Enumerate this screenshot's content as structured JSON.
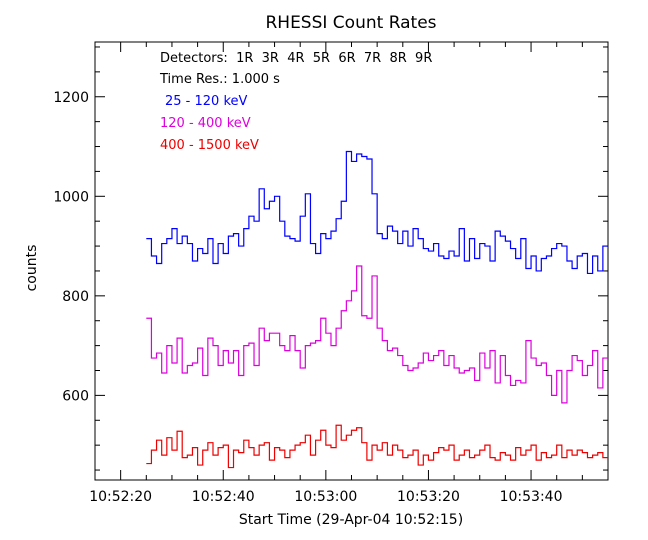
{
  "chart_data": {
    "type": "line",
    "title": "RHESSI Count Rates",
    "xlabel": "Start Time (29-Apr-04 10:52:15)",
    "ylabel": "counts",
    "x_unit": "seconds after 10:52:15",
    "xlim": [
      0,
      100
    ],
    "ylim": [
      430,
      1310
    ],
    "x_ticks": [
      {
        "value": 5,
        "label": "10:52:20"
      },
      {
        "value": 25,
        "label": "10:52:40"
      },
      {
        "value": 45,
        "label": "10:53:00"
      },
      {
        "value": 65,
        "label": "10:53:20"
      },
      {
        "value": 85,
        "label": "10:53:40"
      }
    ],
    "y_ticks": [
      {
        "value": 600,
        "label": "600"
      },
      {
        "value": 800,
        "label": "800"
      },
      {
        "value": 1000,
        "label": "1000"
      },
      {
        "value": 1200,
        "label": "1200"
      }
    ],
    "annotations": {
      "detectors": "Detectors:  1R  3R  4R  5R  6R  7R  8R  9R",
      "time_res": "Time Res.: 1.000 s"
    },
    "grid": false,
    "legend_position": "top-left",
    "step_start": 10,
    "step_width": 1,
    "series": [
      {
        "name": "25 - 120 keV",
        "color": "#0000ff",
        "values": [
          915,
          880,
          865,
          905,
          915,
          935,
          905,
          920,
          905,
          870,
          895,
          885,
          915,
          865,
          905,
          885,
          920,
          925,
          900,
          935,
          960,
          950,
          1015,
          975,
          990,
          1000,
          950,
          920,
          915,
          910,
          960,
          1005,
          905,
          885,
          925,
          915,
          930,
          955,
          990,
          1090,
          1070,
          1085,
          1080,
          1075,
          1005,
          925,
          915,
          940,
          930,
          905,
          930,
          900,
          935,
          915,
          895,
          890,
          905,
          880,
          875,
          890,
          880,
          935,
          870,
          915,
          875,
          905,
          900,
          870,
          930,
          920,
          910,
          895,
          875,
          915,
          855,
          880,
          850,
          875,
          880,
          895,
          905,
          900,
          870,
          855,
          880,
          885,
          845,
          880,
          850,
          900
        ]
      },
      {
        "name": "120 - 400 keV",
        "color": "#dd00dd",
        "values": [
          755,
          675,
          685,
          645,
          700,
          665,
          715,
          645,
          660,
          665,
          695,
          640,
          715,
          700,
          660,
          690,
          665,
          690,
          640,
          700,
          705,
          660,
          735,
          710,
          725,
          725,
          700,
          690,
          720,
          690,
          655,
          700,
          705,
          710,
          755,
          725,
          700,
          735,
          770,
          790,
          810,
          860,
          760,
          755,
          840,
          735,
          710,
          690,
          695,
          680,
          660,
          650,
          655,
          665,
          685,
          670,
          680,
          690,
          660,
          680,
          655,
          645,
          650,
          655,
          630,
          685,
          655,
          690,
          625,
          680,
          640,
          620,
          630,
          625,
          710,
          675,
          660,
          665,
          640,
          600,
          650,
          585,
          650,
          680,
          670,
          640,
          660,
          690,
          615,
          675
        ]
      },
      {
        "name": "400 - 1500 keV",
        "color": "#ee0000",
        "values": [
          463,
          490,
          510,
          480,
          515,
          490,
          528,
          475,
          480,
          495,
          460,
          490,
          505,
          480,
          495,
          500,
          455,
          490,
          485,
          510,
          495,
          480,
          500,
          505,
          470,
          495,
          490,
          475,
          490,
          500,
          505,
          520,
          480,
          510,
          530,
          500,
          495,
          540,
          510,
          520,
          530,
          535,
          505,
          470,
          500,
          490,
          505,
          480,
          500,
          490,
          475,
          480,
          490,
          460,
          480,
          470,
          485,
          495,
          490,
          500,
          470,
          480,
          490,
          475,
          480,
          490,
          500,
          475,
          470,
          485,
          480,
          470,
          495,
          480,
          490,
          500,
          470,
          485,
          475,
          480,
          500,
          475,
          490,
          480,
          490,
          485,
          475,
          480,
          485,
          475
        ]
      }
    ]
  }
}
